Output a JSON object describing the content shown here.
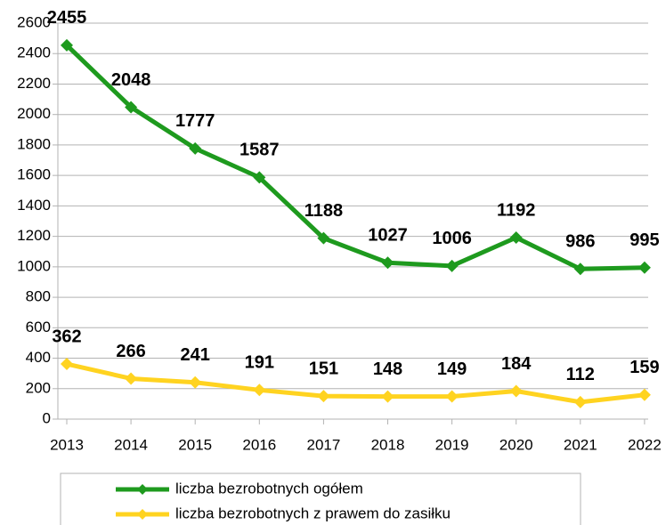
{
  "chart_data": {
    "type": "line",
    "categories": [
      "2013",
      "2014",
      "2015",
      "2016",
      "2017",
      "2018",
      "2019",
      "2020",
      "2021",
      "2022"
    ],
    "series": [
      {
        "name": "liczba bezrobotnych ogółem",
        "color": "#1e9a1e",
        "values": [
          2455,
          2048,
          1777,
          1587,
          1188,
          1027,
          1006,
          1192,
          986,
          995
        ]
      },
      {
        "name": "liczba bezrobotnych z prawem do zasiłku",
        "color": "#ffd320",
        "values": [
          362,
          266,
          241,
          191,
          151,
          148,
          149,
          184,
          112,
          159
        ]
      }
    ],
    "ylim": [
      0,
      2600
    ],
    "yticks": [
      0,
      200,
      400,
      600,
      800,
      1000,
      1200,
      1400,
      1600,
      1800,
      2000,
      2200,
      2400,
      2600
    ],
    "grid": true,
    "legend": "bottom"
  }
}
